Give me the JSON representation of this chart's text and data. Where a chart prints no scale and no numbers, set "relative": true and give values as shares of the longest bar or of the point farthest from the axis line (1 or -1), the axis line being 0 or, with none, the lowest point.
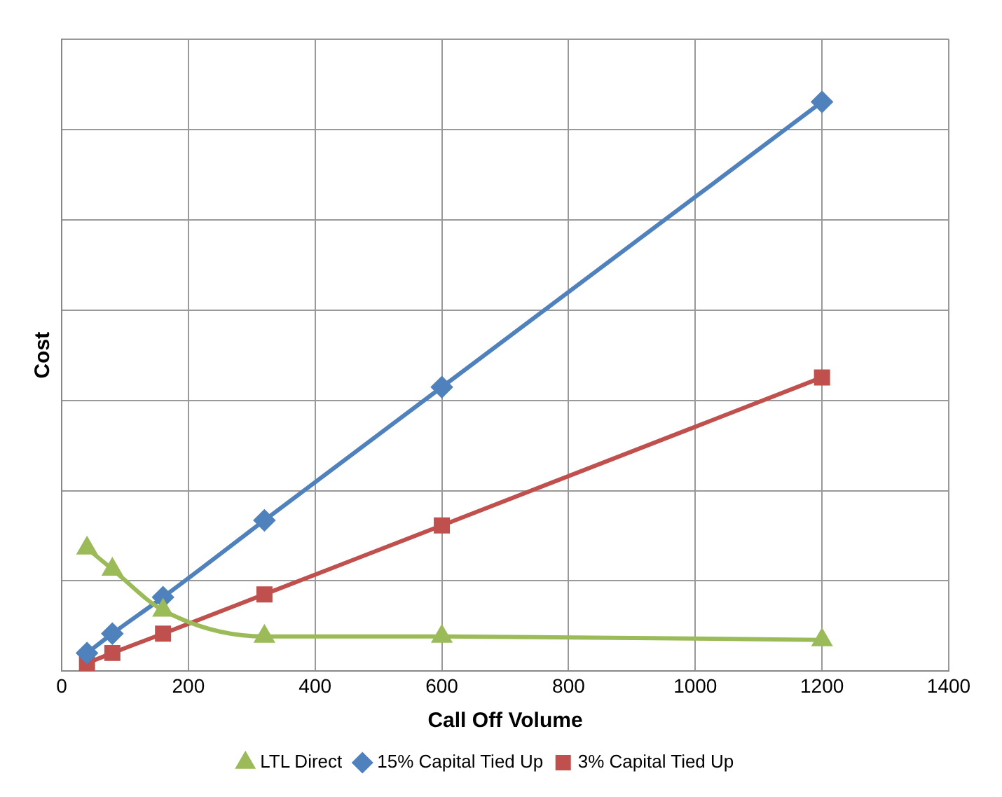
{
  "chart_data": {
    "type": "line",
    "xlabel": "Call Off Volume",
    "ylabel": "Cost",
    "relative": true,
    "x": [
      40,
      80,
      160,
      320,
      600,
      1200
    ],
    "xlim": [
      0,
      1400
    ],
    "xticks": [
      0,
      200,
      400,
      600,
      800,
      1000,
      1200,
      1400
    ],
    "series": [
      {
        "name": "LTL Direct",
        "color": "#9bbb59",
        "marker": "triangle",
        "values": [
          0.216,
          0.179,
          0.107,
          0.061,
          0.061,
          0.055
        ]
      },
      {
        "name": "15% Capital Tied Up",
        "color": "#4f81bd",
        "marker": "diamond",
        "values": [
          0.032,
          0.066,
          0.13,
          0.265,
          0.499,
          1
        ]
      },
      {
        "name": "3% Capital Tied Up",
        "color": "#c0504d",
        "marker": "square",
        "values": [
          0.014,
          0.032,
          0.066,
          0.135,
          0.256,
          0.516
        ]
      }
    ],
    "grid": true,
    "legend": "bottom"
  }
}
